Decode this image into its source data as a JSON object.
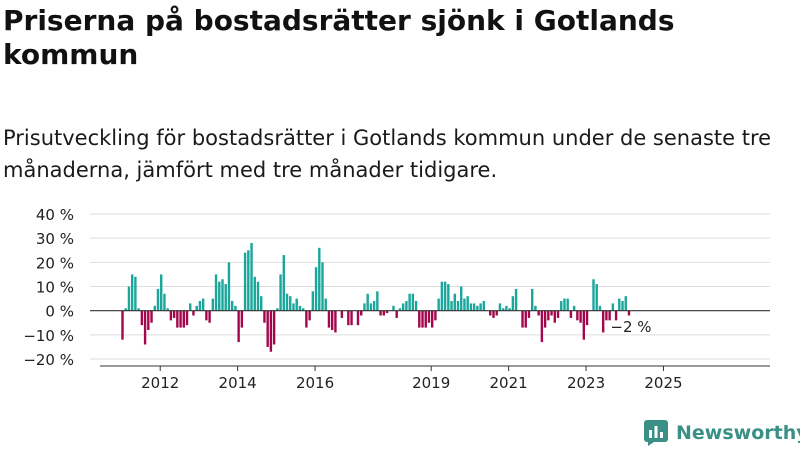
{
  "title": "Priserna på bostadsrätter sjönk i Gotlands kommun",
  "subtitle": "Prisutveckling för bostadsrätter i Gotlands kommun under de senaste tre månaderna, jämfört med tre månader tidigare.",
  "logo": {
    "text": "Newsworthy",
    "icon": "bar-chart-icon"
  },
  "colors": {
    "positive": "#1aa69a",
    "negative": "#a3064b",
    "axis": "#333333",
    "grid": "#dddddd",
    "brand": "#3a8f86"
  },
  "chart_data": {
    "type": "bar",
    "x_start": "2011-01",
    "frequency": "monthly",
    "values": [
      -12,
      1,
      10,
      15,
      14,
      1,
      -6,
      -14,
      -8,
      -5,
      2,
      9,
      15,
      7,
      1,
      -4,
      -3,
      -7,
      -7,
      -7,
      -6,
      3,
      -2,
      2,
      4,
      5,
      -4,
      -5,
      5,
      15,
      12,
      13,
      11,
      20,
      4,
      2,
      -13,
      -7,
      24,
      25,
      28,
      14,
      12,
      6,
      -5,
      -15,
      -17,
      -14,
      1,
      15,
      23,
      7,
      6,
      3,
      5,
      2,
      1,
      -7,
      -4,
      8,
      18,
      26,
      20,
      5,
      -7,
      -8,
      -9,
      0,
      -3,
      0,
      -6,
      -6,
      0,
      -6,
      -2,
      3,
      7,
      3,
      4,
      8,
      -2,
      -2,
      -1,
      0,
      2,
      -3,
      1,
      3,
      4,
      7,
      7,
      4,
      -7,
      -7,
      -7,
      -5,
      -7,
      -4,
      5,
      12,
      12,
      11,
      4,
      7,
      4,
      10,
      5,
      6,
      3,
      3,
      2,
      3,
      4,
      0,
      -2,
      -3,
      -2,
      3,
      1,
      2,
      1,
      6,
      9,
      0,
      -7,
      -7,
      -3,
      9,
      2,
      -2,
      -13,
      -7,
      -4,
      -2,
      -5,
      -3,
      4,
      5,
      5,
      -3,
      2,
      -4,
      -5,
      -12,
      -6,
      0,
      13,
      11,
      2,
      -9,
      -4,
      -4,
      3,
      -4,
      5,
      4,
      6,
      -2
    ],
    "ylim": [
      -20,
      40
    ],
    "yticks": [
      40,
      30,
      20,
      10,
      0,
      -10,
      -20
    ],
    "ytick_labels": [
      "40 %",
      "30 %",
      "20 %",
      "10 %",
      "0 %",
      "−10 %",
      "−20 %"
    ],
    "xtick_years": [
      2012,
      2014,
      2016,
      2019,
      2021,
      2023,
      2025
    ],
    "xtick_labels": [
      "2012",
      "2014",
      "2016",
      "2019",
      "2021",
      "2023",
      "2025"
    ],
    "last_label": "−2 %",
    "grid": true
  }
}
